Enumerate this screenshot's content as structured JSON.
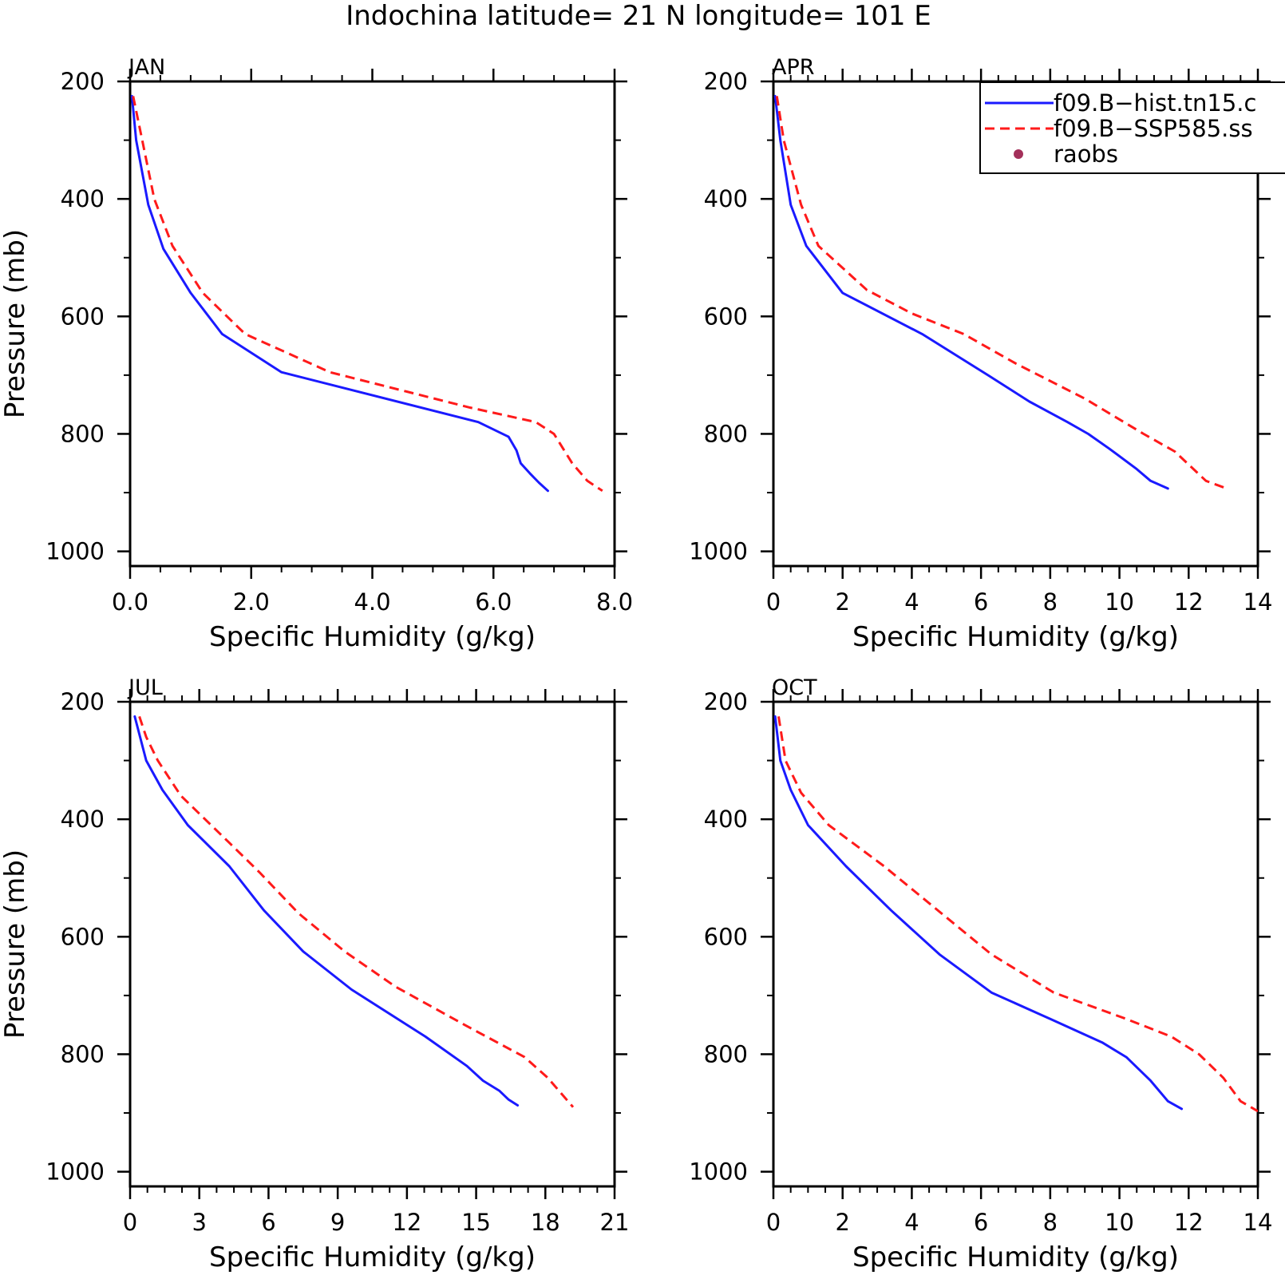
{
  "figure": {
    "title": "Indochina  latitude= 21 N longitude= 101 E"
  },
  "legend": {
    "entries": [
      {
        "label": "f09.B−hist.tn15.c",
        "color": "#1a1aff",
        "style": "solid"
      },
      {
        "label": "f09.B−SSP585.ss",
        "color": "#ff1a1a",
        "style": "dashed"
      },
      {
        "label": "raobs",
        "color": "#a3305a",
        "style": "dot"
      }
    ]
  },
  "chart_data": [
    {
      "type": "line",
      "panel": "JAN",
      "xlabel": "Specific Humidity (g/kg)",
      "ylabel": "Pressure (mb)",
      "xlim": [
        0,
        8
      ],
      "ylim": [
        200,
        1025
      ],
      "y_inverted": true,
      "xticks": [
        "0.0",
        "2.0",
        "4.0",
        "6.0",
        "8.0"
      ],
      "xtick_values": [
        0,
        2,
        4,
        6,
        8
      ],
      "yticks": [
        200,
        400,
        600,
        800,
        1000
      ],
      "series": [
        {
          "name": "f09.B−hist.tn15.c",
          "color": "#1a1aff",
          "style": "solid",
          "x": [
            0.03,
            0.1,
            0.3,
            0.55,
            1.0,
            1.52,
            2.5,
            5.75,
            6.25,
            6.38,
            6.45,
            6.6,
            6.75,
            6.9
          ],
          "y": [
            225,
            300,
            410,
            485,
            560,
            630,
            695,
            780,
            805,
            828,
            850,
            867,
            883,
            897
          ]
        },
        {
          "name": "f09.B−SSP585.ss",
          "color": "#ff1a1a",
          "style": "dashed",
          "x": [
            0.05,
            0.2,
            0.4,
            0.7,
            1.2,
            1.9,
            3.3,
            5.6,
            6.7,
            7.0,
            7.3,
            7.55,
            7.8
          ],
          "y": [
            225,
            300,
            400,
            480,
            560,
            630,
            695,
            755,
            780,
            800,
            850,
            880,
            897
          ]
        }
      ]
    },
    {
      "type": "line",
      "panel": "APR",
      "xlabel": "Specific Humidity (g/kg)",
      "ylabel": "",
      "xlim": [
        0,
        14
      ],
      "ylim": [
        200,
        1025
      ],
      "y_inverted": true,
      "xticks": [
        "0",
        "2",
        "4",
        "6",
        "8",
        "10",
        "12",
        "14"
      ],
      "xtick_values": [
        0,
        2,
        4,
        6,
        8,
        10,
        12,
        14
      ],
      "yticks": [
        200,
        400,
        600,
        800,
        1000
      ],
      "series": [
        {
          "name": "f09.B−hist.tn15.c",
          "color": "#1a1aff",
          "style": "solid",
          "x": [
            0.05,
            0.2,
            0.5,
            0.95,
            2.0,
            4.3,
            6.2,
            7.4,
            8.5,
            9.1,
            9.7,
            10.5,
            10.9,
            11.4
          ],
          "y": [
            225,
            300,
            410,
            480,
            560,
            630,
            700,
            745,
            780,
            800,
            825,
            860,
            880,
            893
          ]
        },
        {
          "name": "f09.B−SSP585.ss",
          "color": "#ff1a1a",
          "style": "dashed",
          "x": [
            0.1,
            0.3,
            0.8,
            1.3,
            2.7,
            4.0,
            5.5,
            7.0,
            9.0,
            10.7,
            11.6,
            12.5,
            13.1
          ],
          "y": [
            225,
            300,
            410,
            480,
            555,
            595,
            630,
            680,
            740,
            800,
            830,
            880,
            893
          ]
        }
      ]
    },
    {
      "type": "line",
      "panel": "JUL",
      "xlabel": "Specific Humidity (g/kg)",
      "ylabel": "Pressure (mb)",
      "xlim": [
        0,
        21
      ],
      "ylim": [
        200,
        1025
      ],
      "y_inverted": true,
      "xticks": [
        "0",
        "3",
        "6",
        "9",
        "12",
        "15",
        "18",
        "21"
      ],
      "xtick_values": [
        0,
        3,
        6,
        9,
        12,
        15,
        18,
        21
      ],
      "yticks": [
        200,
        400,
        600,
        800,
        1000
      ],
      "series": [
        {
          "name": "f09.B−hist.tn15.c",
          "color": "#1a1aff",
          "style": "solid",
          "x": [
            0.2,
            0.7,
            1.4,
            2.5,
            4.3,
            5.8,
            7.5,
            9.6,
            12.8,
            14.6,
            15.3,
            16.0,
            16.4,
            16.8
          ],
          "y": [
            225,
            300,
            350,
            410,
            480,
            555,
            625,
            690,
            770,
            820,
            845,
            862,
            877,
            887
          ]
        },
        {
          "name": "f09.B−SSP585.ss",
          "color": "#ff1a1a",
          "style": "dashed",
          "x": [
            0.4,
            0.7,
            1.2,
            2.2,
            4.3,
            5.6,
            7.3,
            9.3,
            11.5,
            14.5,
            17.1,
            18.1,
            19.2
          ],
          "y": [
            225,
            260,
            300,
            360,
            440,
            490,
            560,
            625,
            685,
            750,
            805,
            840,
            890
          ]
        }
      ]
    },
    {
      "type": "line",
      "panel": "OCT",
      "xlabel": "Specific Humidity (g/kg)",
      "ylabel": "",
      "xlim": [
        0,
        14
      ],
      "ylim": [
        200,
        1025
      ],
      "y_inverted": true,
      "xticks": [
        "0",
        "2",
        "4",
        "6",
        "8",
        "10",
        "12",
        "14"
      ],
      "xtick_values": [
        0,
        2,
        4,
        6,
        8,
        10,
        12,
        14
      ],
      "yticks": [
        200,
        400,
        600,
        800,
        1000
      ],
      "series": [
        {
          "name": "f09.B−hist.tn15.c",
          "color": "#1a1aff",
          "style": "solid",
          "x": [
            0.05,
            0.2,
            0.5,
            1.0,
            2.1,
            3.4,
            4.8,
            6.3,
            8.0,
            9.5,
            10.2,
            10.9,
            11.4,
            11.8
          ],
          "y": [
            225,
            300,
            350,
            410,
            480,
            555,
            630,
            695,
            740,
            780,
            805,
            845,
            880,
            893
          ]
        },
        {
          "name": "f09.B−SSP585.ss",
          "color": "#ff1a1a",
          "style": "dashed",
          "x": [
            0.15,
            0.35,
            0.8,
            1.6,
            3.2,
            6.3,
            8.1,
            10.2,
            11.5,
            12.3,
            13.0,
            13.5,
            14.0
          ],
          "y": [
            225,
            300,
            355,
            410,
            480,
            630,
            695,
            740,
            770,
            800,
            840,
            880,
            897
          ]
        }
      ]
    }
  ]
}
